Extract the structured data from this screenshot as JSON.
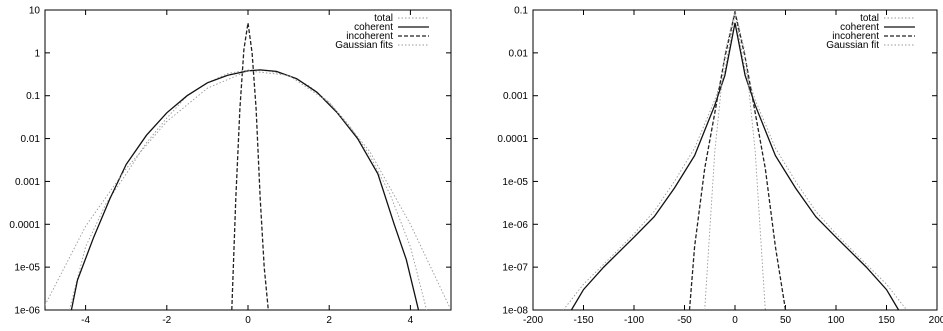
{
  "chart_data": [
    {
      "type": "line",
      "title": "",
      "xlabel": "",
      "ylabel": "",
      "xlim": [
        -5,
        5
      ],
      "ylim": [
        1e-06,
        10
      ],
      "yscale": "log",
      "grid": false,
      "legend_position": "top-right",
      "x_tick_labels": [
        "-4",
        "-2",
        "0",
        "2",
        "4"
      ],
      "y_tick_labels": [
        "10",
        "1",
        "0.1",
        "0.01",
        "0.001",
        "0.0001",
        "1e-05",
        "1e-06"
      ],
      "series": [
        {
          "name": "total",
          "style": "dotted-light",
          "x": [
            -4.4,
            -4.0,
            -3.5,
            -3.0,
            -2.5,
            -2.0,
            -1.5,
            -1.0,
            -0.5,
            0.0,
            0.5,
            1.0,
            1.5,
            2.0,
            2.5,
            3.0,
            3.5,
            4.0,
            4.4
          ],
          "y": [
            1e-06,
            3e-05,
            0.0003,
            0.0015,
            0.008,
            0.03,
            0.1,
            0.2,
            0.33,
            0.4,
            0.38,
            0.3,
            0.17,
            0.07,
            0.02,
            0.004,
            0.0005,
            3e-05,
            1e-06
          ]
        },
        {
          "name": "coherent",
          "style": "solid",
          "x": [
            -4.35,
            -4.2,
            -3.8,
            -3.4,
            -3.0,
            -2.5,
            -2.0,
            -1.5,
            -1.0,
            -0.5,
            0.0,
            0.3,
            0.7,
            1.2,
            1.7,
            2.2,
            2.7,
            3.2,
            3.6,
            3.9,
            4.2
          ],
          "y": [
            1e-06,
            5e-06,
            5e-05,
            0.0004,
            0.0025,
            0.012,
            0.04,
            0.1,
            0.2,
            0.3,
            0.38,
            0.4,
            0.37,
            0.25,
            0.12,
            0.04,
            0.01,
            0.0015,
            0.0001,
            1.5e-05,
            1e-06
          ]
        },
        {
          "name": "incoherent",
          "style": "dashed",
          "x": [
            -0.4,
            -0.3,
            -0.2,
            -0.1,
            0.0,
            0.1,
            0.2,
            0.3,
            0.4,
            0.5
          ],
          "y": [
            1e-06,
            0.0004,
            0.05,
            1.2,
            5.0,
            1.0,
            0.05,
            0.0004,
            1e-05,
            1e-06
          ]
        },
        {
          "name": "Gaussian fits",
          "style": "dotted-light",
          "x": [
            -5.0,
            -4.0,
            -3.0,
            -2.0,
            -1.0,
            0.0,
            1.0,
            2.0,
            3.0,
            4.0,
            5.0
          ],
          "y": [
            1.3e-06,
            9e-05,
            0.002,
            0.025,
            0.15,
            0.38,
            0.3,
            0.07,
            0.005,
            0.0001,
            1e-06
          ]
        }
      ]
    },
    {
      "type": "line",
      "title": "",
      "xlabel": "",
      "ylabel": "",
      "xlim": [
        -200,
        200
      ],
      "ylim": [
        1e-08,
        0.1
      ],
      "yscale": "log",
      "grid": false,
      "legend_position": "top-right",
      "x_tick_labels": [
        "-200",
        "-150",
        "-100",
        "-50",
        "0",
        "50",
        "100",
        "150",
        "200"
      ],
      "y_tick_labels": [
        "0.1",
        "0.01",
        "0.001",
        "0.0001",
        "1e-05",
        "1e-06",
        "1e-07",
        "1e-08"
      ],
      "series": [
        {
          "name": "total",
          "style": "dotted-light",
          "x": [
            -170,
            -150,
            -120,
            -100,
            -80,
            -60,
            -40,
            -20,
            -10,
            0,
            10,
            20,
            40,
            60,
            80,
            100,
            120,
            150,
            170
          ],
          "y": [
            1e-08,
            4e-08,
            2e-07,
            6e-07,
            2e-06,
            1e-05,
            6e-05,
            0.0008,
            0.004,
            0.08,
            0.004,
            0.0008,
            6e-05,
            1e-05,
            2e-06,
            6e-07,
            2e-07,
            4e-08,
            1e-08
          ]
        },
        {
          "name": "coherent",
          "style": "solid",
          "x": [
            -162,
            -150,
            -130,
            -100,
            -80,
            -60,
            -40,
            -20,
            -10,
            0,
            10,
            20,
            40,
            60,
            80,
            100,
            130,
            150,
            162
          ],
          "y": [
            1e-08,
            3e-08,
            1e-07,
            5e-07,
            1.5e-06,
            7e-06,
            4e-05,
            0.0006,
            0.003,
            0.05,
            0.003,
            0.0006,
            4e-05,
            7e-06,
            1.5e-06,
            5e-07,
            1e-07,
            3e-08,
            1e-08
          ]
        },
        {
          "name": "incoherent",
          "style": "dashed",
          "x": [
            -45,
            -40,
            -30,
            -20,
            -10,
            0,
            10,
            20,
            30,
            40,
            50
          ],
          "y": [
            1e-08,
            3e-07,
            2e-05,
            0.0004,
            0.008,
            0.09,
            0.008,
            0.0004,
            2e-05,
            3e-07,
            1e-08
          ]
        },
        {
          "name": "Gaussian fit",
          "style": "dotted-light",
          "x": [
            -30,
            -20,
            -10,
            0,
            10,
            20,
            30
          ],
          "y": [
            1e-08,
            5e-05,
            0.01,
            0.1,
            0.01,
            5e-05,
            1e-08
          ]
        }
      ]
    }
  ]
}
